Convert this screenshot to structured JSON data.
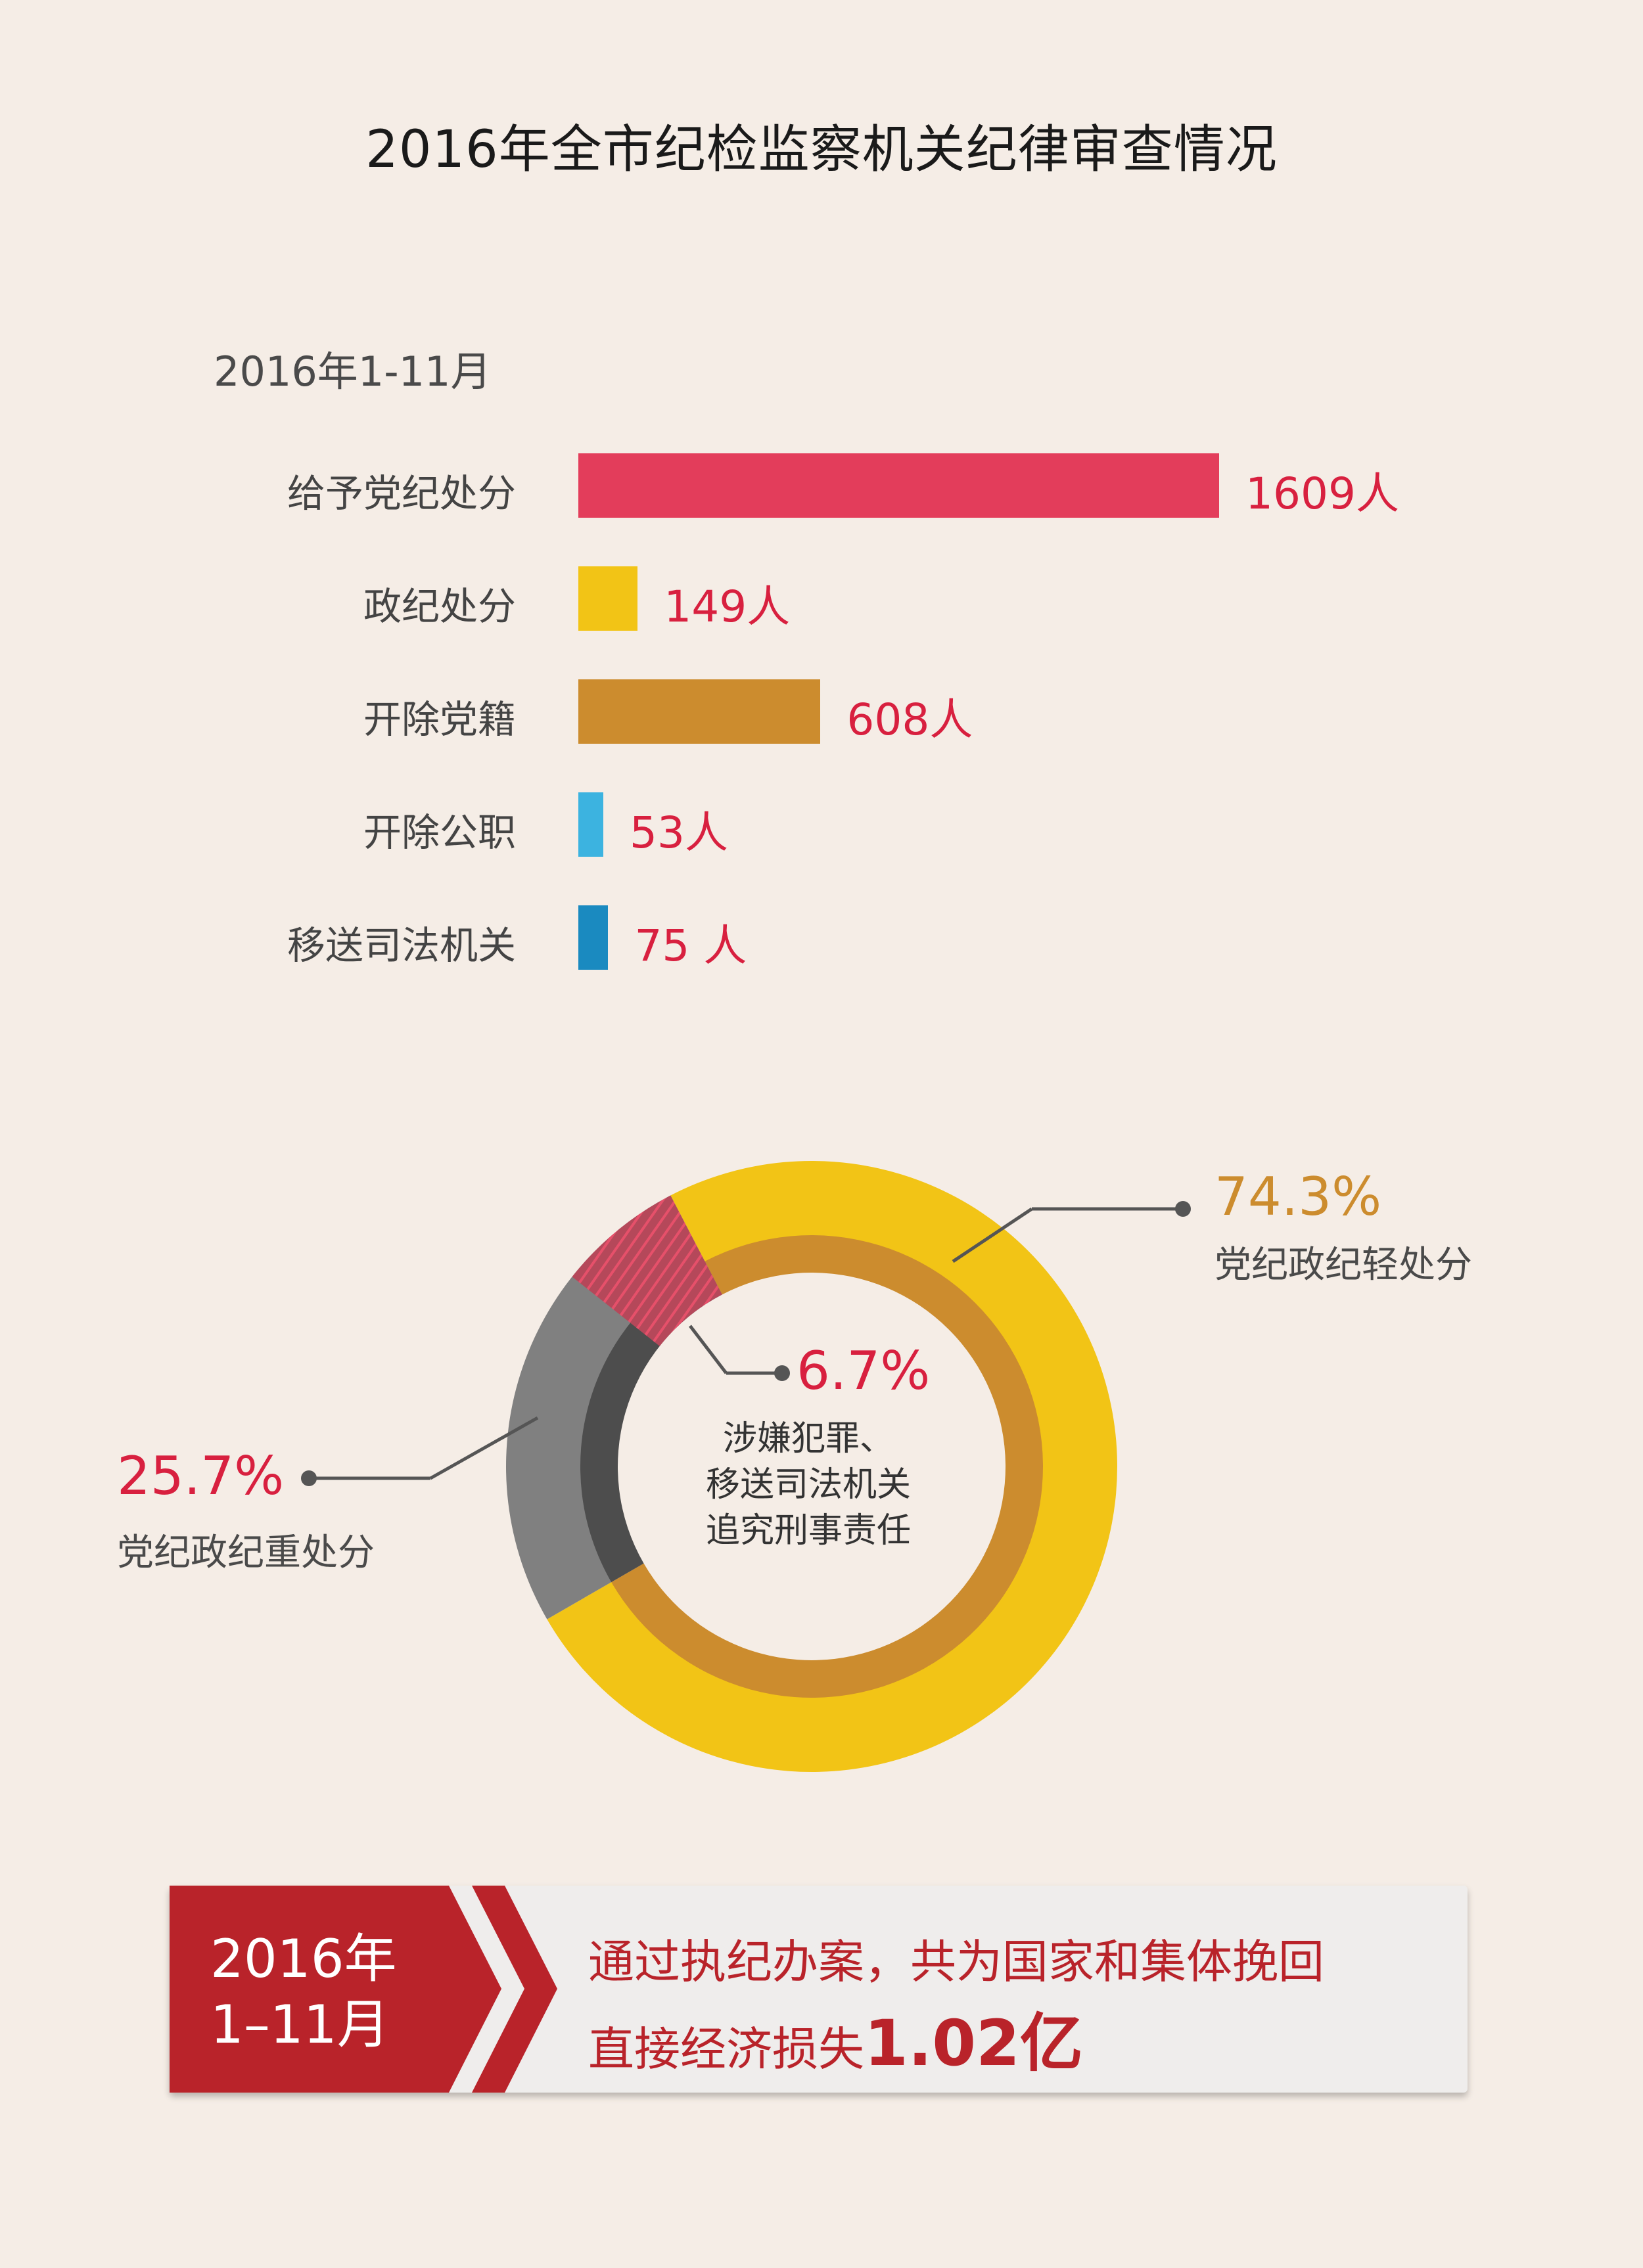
{
  "title": "2016年全市纪检监察机关纪律审查情况",
  "period": "2016年1-11月",
  "chart_data": [
    {
      "type": "bar",
      "orientation": "horizontal",
      "title": "2016年1-11月",
      "categories": [
        "给予党纪处分",
        "政纪处分",
        "开除党籍",
        "开除公职",
        "移送司法机关"
      ],
      "values": [
        1609,
        149,
        608,
        53,
        75
      ],
      "value_labels": [
        "1609人",
        "149人",
        "608人",
        "53人",
        "75 人"
      ],
      "colors": [
        "#e33d5b",
        "#f2c416",
        "#cc8c2e",
        "#3cb3e0",
        "#1a8ac0"
      ]
    },
    {
      "type": "pie",
      "style": "donut",
      "outer_ring": {
        "slices": [
          {
            "label": "党纪政纪轻处分",
            "value": 74.3,
            "text": "74.3%",
            "color": "#f2c416"
          },
          {
            "label": "党纪政纪重处分",
            "value": 25.7,
            "text": "25.7%",
            "color": "#808080"
          }
        ]
      },
      "inner_ring": {
        "slices": [
          {
            "value": 74.3,
            "color": "#cc8c2e"
          },
          {
            "value": 25.7,
            "color": "#4d4d4d"
          }
        ]
      },
      "highlight": {
        "label": "涉嫌犯罪、移送司法机关追究刑事责任",
        "value": 6.7,
        "text": "6.7%",
        "color": "#e33d5b"
      },
      "center_text": [
        "涉嫌犯罪、",
        "移送司法机关",
        "追究刑事责任"
      ]
    }
  ],
  "panel": {
    "year_line1": "2016年",
    "year_line2": "1–11月",
    "line1": "通过执纪办案，共为国家和集体挽回",
    "line2_prefix": "直接经济损失",
    "line2_big": "1.02亿"
  }
}
